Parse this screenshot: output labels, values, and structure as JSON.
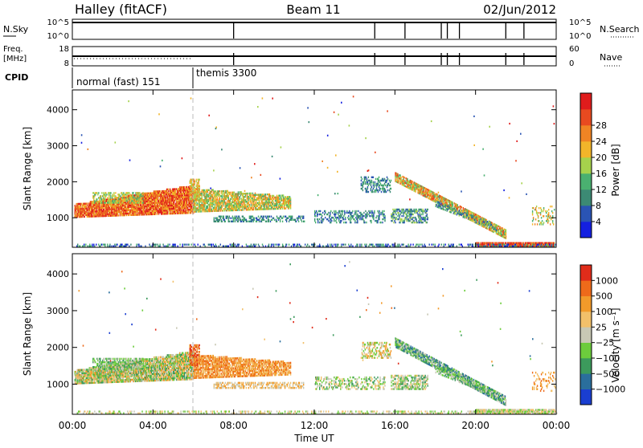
{
  "header": {
    "station": "Halley (fitACF)",
    "beam": "Beam 11",
    "date": "02/Jun/2012"
  },
  "strips": {
    "nsky_label": "N.Sky",
    "nsky_top": "10^5",
    "nsky_bottom": "10^0",
    "nsearch_label": "N.Search",
    "nsearch_top": "10^5",
    "nsearch_bottom": "10^0",
    "freq_label": "Freq.",
    "freq_unit": "[MHz]",
    "freq_top": "18",
    "freq_bottom": "8",
    "nave_label": "Nave",
    "nave_top": "60",
    "nave_bottom": "0",
    "cpid_label": "CPID",
    "cpid_modes": [
      {
        "label": "normal (fast) 151",
        "start": 0
      },
      {
        "label": "themis 3300",
        "start": 6
      }
    ],
    "nsky_drops": [
      8,
      15,
      16.5,
      18.3,
      18.6,
      19.2,
      21.5,
      22.4
    ],
    "freq_drops": [
      8,
      15,
      16.5,
      18.3,
      18.6,
      19.2,
      21.5,
      22.4
    ]
  },
  "chart_data": [
    {
      "type": "heatmap",
      "name": "power",
      "xlabel": "",
      "ylabel": "Slant Range [km]",
      "xlim": [
        0,
        24
      ],
      "ylim": [
        180,
        4550
      ],
      "y_ticks": [
        1000,
        2000,
        3000,
        4000
      ],
      "colorbar_label": "Power [dB]",
      "colorbar_ticks": [
        "4",
        "8",
        "12",
        "16",
        "20",
        "24",
        "28"
      ],
      "colorbar_colors": [
        "#1420e0",
        "#2a54b4",
        "#3c8a74",
        "#4ab070",
        "#a6d24c",
        "#f2b52a",
        "#f08424",
        "#e84a20",
        "#e01c1c"
      ]
    },
    {
      "type": "heatmap",
      "name": "velocity",
      "xlabel": "Time UT",
      "ylabel": "Slant Range [km]",
      "xlim": [
        0,
        24
      ],
      "ylim": [
        180,
        4550
      ],
      "x_ticks": [
        "00:00",
        "04:00",
        "08:00",
        "12:00",
        "16:00",
        "20:00",
        "00:00"
      ],
      "y_ticks": [
        1000,
        2000,
        3000,
        4000
      ],
      "colorbar_label": "Velocity [m s⁻¹]",
      "colorbar_ticks": [
        "1000",
        "500",
        "100",
        "25",
        "−25",
        "−100",
        "−500",
        "−1000"
      ],
      "colorbar_colors": [
        "#1a3ed0",
        "#2a6e9c",
        "#3c9a5c",
        "#6ccc3c",
        "#c8c8b4",
        "#f2c06a",
        "#f29a2a",
        "#ee6a1a",
        "#e02c1a"
      ]
    }
  ],
  "colors": {
    "dashed_marker": "#bbbbbb"
  }
}
